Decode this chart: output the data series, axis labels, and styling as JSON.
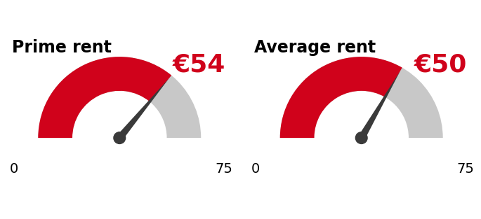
{
  "gauges": [
    {
      "title": "Prime rent",
      "value": 54,
      "max_val": 75,
      "label": "€54"
    },
    {
      "title": "Average rent",
      "value": 50,
      "max_val": 75,
      "label": "€50"
    }
  ],
  "red_color": "#d0021b",
  "gray_color": "#c8c8c8",
  "needle_color": "#3a3a3a",
  "title_fontsize": 17,
  "label_fontsize": 26,
  "tick_fontsize": 14,
  "background_color": "#ffffff"
}
